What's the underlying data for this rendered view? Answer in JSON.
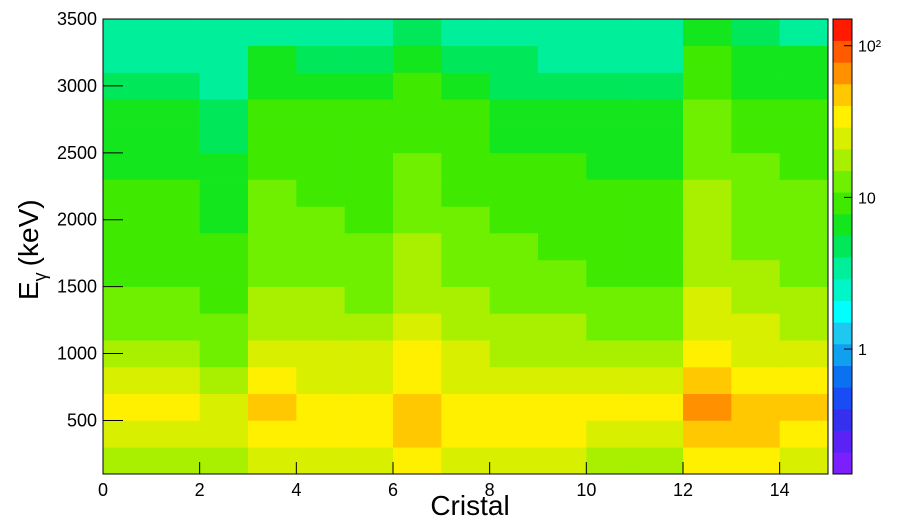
{
  "chart_data": {
    "type": "heatmap",
    "xlabel": "Cristal",
    "ylabel": {
      "text": "E",
      "subscript": "γ",
      "rest": "(keV)"
    },
    "xbins": [
      0,
      1,
      2,
      3,
      4,
      5,
      6,
      7,
      8,
      9,
      10,
      11,
      12,
      13,
      14,
      15
    ],
    "ybins": [
      100,
      300,
      500,
      700,
      900,
      1100,
      1300,
      1500,
      1700,
      1900,
      2100,
      2300,
      2500,
      2700,
      2900,
      3100,
      3300,
      3500
    ],
    "xlim": [
      0,
      15
    ],
    "xticks": [
      0,
      2,
      4,
      6,
      8,
      10,
      12,
      14
    ],
    "ylim": [
      100,
      3500
    ],
    "yticks": [
      500,
      1000,
      1500,
      2000,
      2500,
      3000,
      3500
    ],
    "zlog": true,
    "zlim": [
      0.15,
      150
    ],
    "zticks": [
      1,
      10,
      {
        "value": 100,
        "label": "10²"
      }
    ],
    "colormap": [
      "#7c1fff",
      "#5a22f5",
      "#3530f0",
      "#1a4cf5",
      "#0a72f0",
      "#0fa0f0",
      "#1ec8f0",
      "#00ffff",
      "#00f5c8",
      "#00ef9a",
      "#00e85a",
      "#14e61e",
      "#3fea00",
      "#6ef000",
      "#a8f000",
      "#d8f000",
      "#fff000",
      "#ffc800",
      "#ff9000",
      "#ff5a00",
      "#ff1a00"
    ],
    "values": [
      [
        20,
        19,
        16,
        28,
        25,
        24,
        33,
        25,
        23,
        21,
        20,
        19,
        38,
        30,
        28
      ],
      [
        28,
        26,
        23,
        39,
        35,
        33,
        46,
        35,
        32,
        30,
        28,
        26,
        53,
        42,
        39
      ],
      [
        32,
        30,
        26,
        44,
        40,
        38,
        52,
        40,
        36,
        34,
        32,
        30,
        60,
        48,
        44
      ],
      [
        22,
        21,
        18,
        31,
        28,
        27,
        36,
        28,
        25,
        24,
        22,
        21,
        42,
        34,
        31
      ],
      [
        18,
        17,
        14,
        24,
        22,
        21,
        29,
        22,
        20,
        19,
        18,
        17,
        33,
        26,
        24
      ],
      [
        14,
        14,
        12,
        20,
        18,
        17,
        23,
        18,
        16,
        15,
        14,
        14,
        27,
        22,
        20
      ],
      [
        12,
        11,
        10,
        17,
        15,
        14,
        20,
        15,
        14,
        13,
        12,
        11,
        23,
        18,
        17
      ],
      [
        10,
        10,
        8,
        14,
        13,
        12,
        17,
        13,
        12,
        11,
        10,
        10,
        20,
        16,
        14
      ],
      [
        10,
        9,
        8,
        13,
        12,
        11,
        16,
        12,
        11,
        10,
        10,
        9,
        18,
        14,
        13
      ],
      [
        9,
        8,
        7,
        12,
        11,
        10,
        14,
        11,
        10,
        9,
        9,
        8,
        17,
        13,
        12
      ],
      [
        8,
        8,
        7,
        11,
        10,
        10,
        13,
        10,
        9,
        9,
        8,
        8,
        15,
        12,
        11
      ],
      [
        7,
        7,
        6,
        10,
        9,
        9,
        12,
        9,
        8,
        8,
        7,
        7,
        14,
        11,
        10
      ],
      [
        6,
        6,
        5,
        9,
        8,
        8,
        10,
        8,
        7,
        7,
        6,
        6,
        12,
        10,
        9
      ],
      [
        6,
        6,
        5,
        9,
        8,
        8,
        10,
        8,
        7,
        7,
        6,
        6,
        12,
        10,
        9
      ],
      [
        5,
        5,
        4,
        7,
        6,
        6,
        8,
        6,
        5,
        5,
        5,
        5,
        9,
        7,
        7
      ],
      [
        4,
        4,
        3,
        6,
        5,
        5,
        7,
        5,
        5,
        4,
        4,
        4,
        8,
        6,
        6
      ],
      [
        3,
        3,
        3,
        4,
        4,
        4,
        5,
        4,
        4,
        3,
        3,
        3,
        6,
        5,
        4
      ]
    ]
  }
}
